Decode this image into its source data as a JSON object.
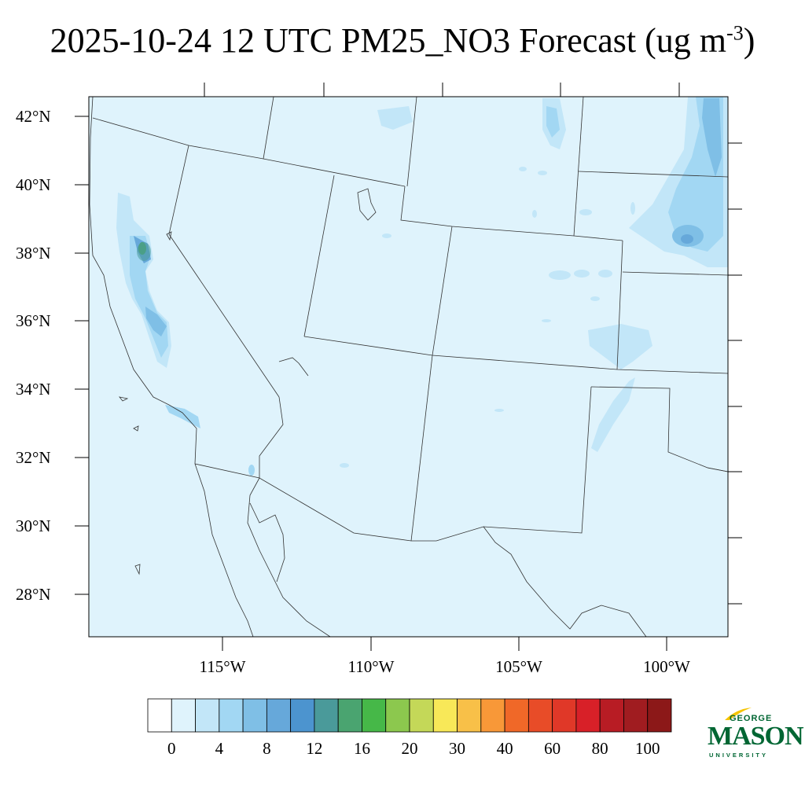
{
  "title": {
    "text": "2025-10-24 12 UTC PM25_NO3 Forecast (ug m",
    "unit_exponent": "-3",
    "closing": ")"
  },
  "map": {
    "variable": "PM25_NO3",
    "lat_labels": [
      "42°N",
      "40°N",
      "38°N",
      "36°N",
      "34°N",
      "32°N",
      "30°N",
      "28°N"
    ],
    "lon_labels": [
      "115°W",
      "110°W",
      "105°W",
      "100°W"
    ],
    "background_fill": "#dff3fc",
    "colors": {
      "level_2": "#c2e6f8",
      "level_4": "#a2d7f3",
      "level_6": "#7fbfe6",
      "level_8": "#66a8da",
      "level_12": "#4c94cf",
      "level_14": "#4a9a9a",
      "level_16": "#4aa470"
    }
  },
  "colorbar": {
    "tick_labels": [
      "0",
      "4",
      "8",
      "12",
      "16",
      "20",
      "30",
      "40",
      "60",
      "80",
      "100"
    ],
    "colors": [
      "#ffffff",
      "#dff3fc",
      "#c2e6f8",
      "#a2d7f3",
      "#7fbfe6",
      "#66a8da",
      "#4c94cf",
      "#4a9a9a",
      "#4aa470",
      "#46b848",
      "#8cc84e",
      "#c4d858",
      "#f8e858",
      "#f8c048",
      "#f89838",
      "#f06828",
      "#e84c28",
      "#e03828",
      "#d82028",
      "#b81c24",
      "#a01c20",
      "#8c1818"
    ]
  },
  "logo": {
    "line1": "GEORGE",
    "line2": "MASON",
    "line3": "UNIVERSITY",
    "color": "#006633",
    "accent": "#f5c400"
  }
}
